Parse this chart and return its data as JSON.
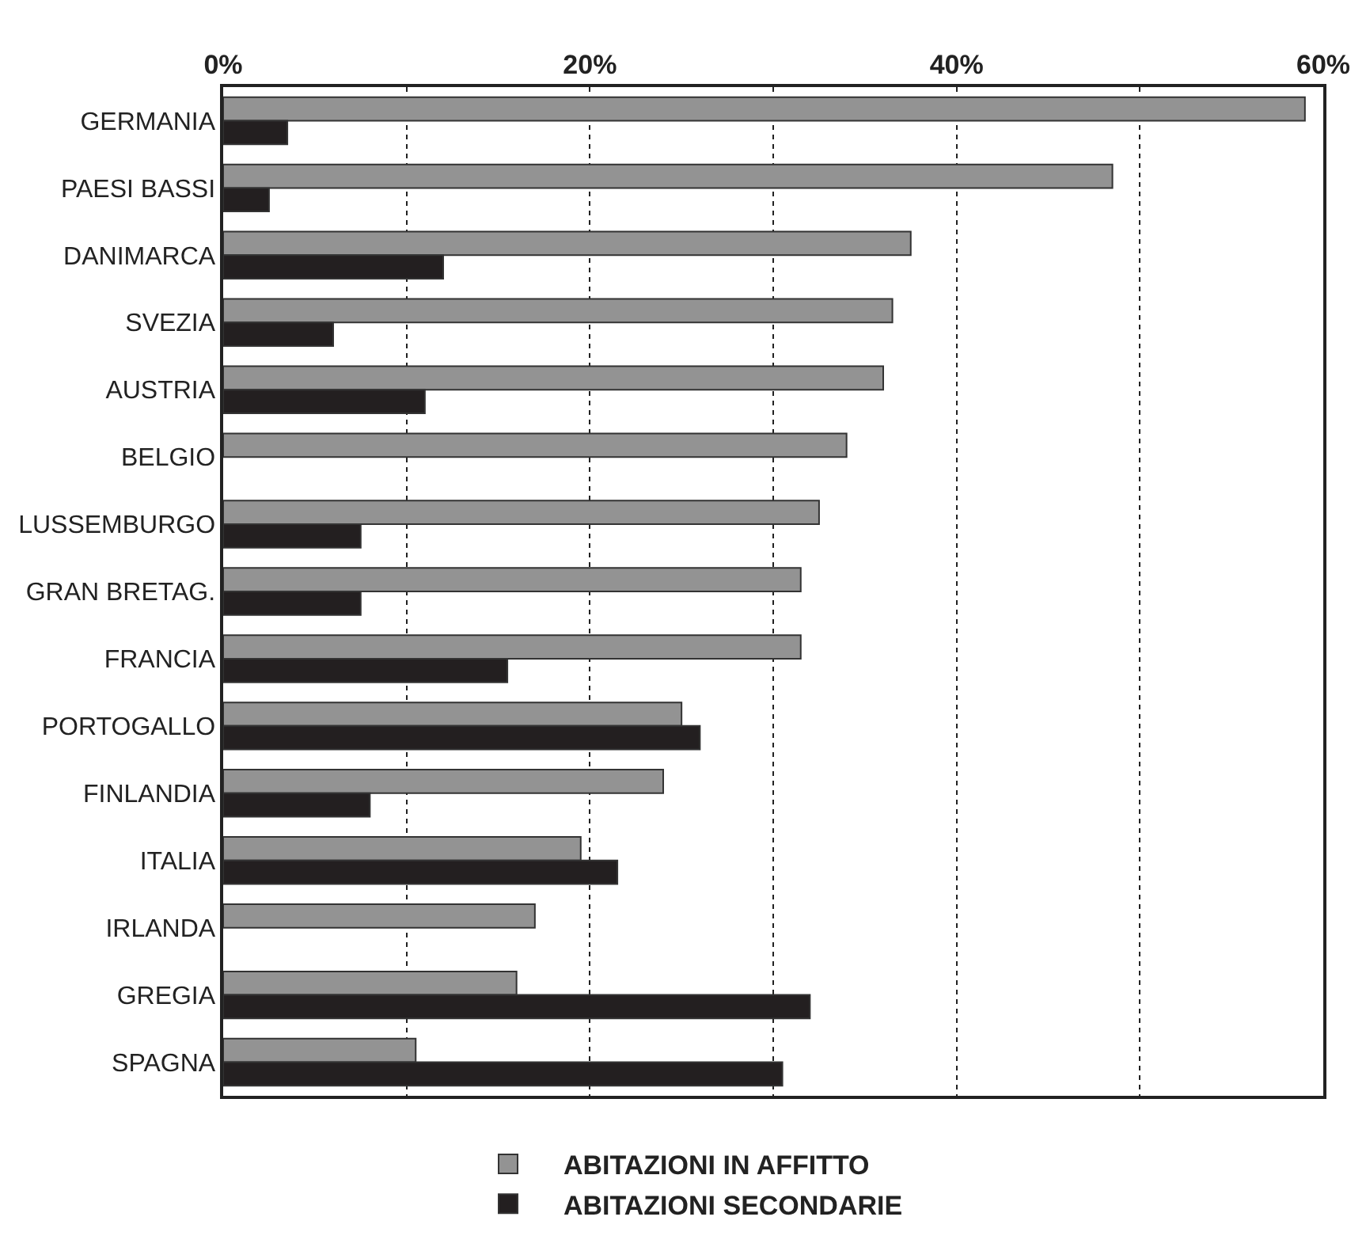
{
  "chart_data": {
    "type": "bar",
    "orientation": "horizontal",
    "categories": [
      "GERMANIA",
      "PAESI BASSI",
      "DANIMARCA",
      "SVEZIA",
      "AUSTRIA",
      "BELGIO",
      "LUSSEMBURGO",
      "GRAN BRETAG.",
      "FRANCIA",
      "PORTOGALLO",
      "FINLANDIA",
      "ITALIA",
      "IRLANDA",
      "GREGIA",
      "SPAGNA"
    ],
    "series": [
      {
        "name": "ABITAZIONI IN AFFITTO",
        "color": "#939393",
        "values": [
          59,
          48.5,
          37.5,
          36.5,
          36,
          34,
          32.5,
          31.5,
          31.5,
          25,
          24,
          19.5,
          17,
          16,
          10.5
        ]
      },
      {
        "name": "ABITAZIONI SECONDARIE",
        "color": "#231f20",
        "values": [
          3.5,
          2.5,
          12,
          6,
          11,
          null,
          7.5,
          7.5,
          15.5,
          26,
          8,
          21.5,
          null,
          32,
          30.5
        ]
      }
    ],
    "xlim": [
      0,
      60
    ],
    "xticks": [
      {
        "value": 0,
        "label": "0%"
      },
      {
        "value": 10,
        "label": null
      },
      {
        "value": 20,
        "label": "20%"
      },
      {
        "value": 30,
        "label": null
      },
      {
        "value": 40,
        "label": "40%"
      },
      {
        "value": 50,
        "label": null
      },
      {
        "value": 60,
        "label": "60%"
      }
    ],
    "grid": "x",
    "legend": "bottom"
  }
}
